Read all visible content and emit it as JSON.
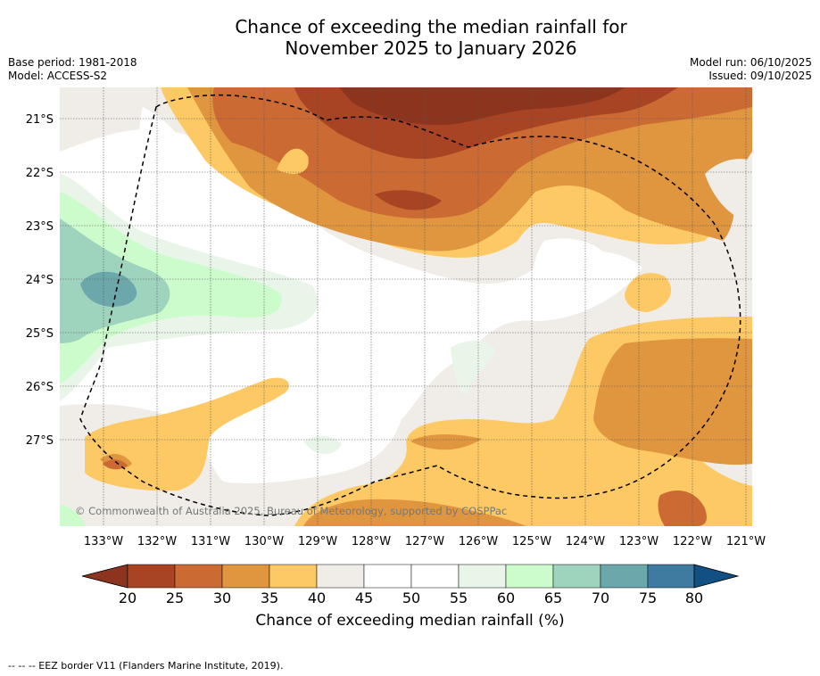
{
  "title": {
    "line1": "Chance of exceeding the median rainfall for",
    "line2": "November 2025 to January 2026"
  },
  "meta_left": {
    "base_period": "Base period: 1981-2018",
    "model": "Model: ACCESS-S2"
  },
  "meta_right": {
    "model_run": "Model run: 06/10/2025",
    "issued": "Issued: 09/10/2025"
  },
  "map": {
    "lat_labels": [
      "21°S",
      "22°S",
      "23°S",
      "24°S",
      "25°S",
      "26°S",
      "27°S"
    ],
    "lon_labels": [
      "133°W",
      "132°W",
      "131°W",
      "130°W",
      "129°W",
      "128°W",
      "127°W",
      "126°W",
      "125°W",
      "124°W",
      "123°W",
      "122°W",
      "121°W"
    ],
    "copyright": "© Commonwealth of Australia 2025, Bureau of Meteorology, supported by COSPPac"
  },
  "colorbar": {
    "ticks": [
      "20",
      "25",
      "30",
      "35",
      "40",
      "45",
      "50",
      "55",
      "60",
      "65",
      "70",
      "75",
      "80"
    ],
    "colors": {
      "below_20": "#8c341d",
      "20_25": "#a84424",
      "25_30": "#cc6a34",
      "30_35": "#e0953f",
      "35_40": "#fdc964",
      "40_45": "#f0ede8",
      "45_50": "#ffffff",
      "50_55": "#ffffff",
      "55_60": "#e9f5e8",
      "60_65": "#ccfbcc",
      "65_70": "#9ed3be",
      "70_75": "#6ca8ab",
      "75_80": "#3f7aa0",
      "above_80": "#124f82"
    },
    "label": "Chance of exceeding median rainfall (%)"
  },
  "footer": "--  --  -- EEZ border V11 (Flanders Marine Institute, 2019)."
}
